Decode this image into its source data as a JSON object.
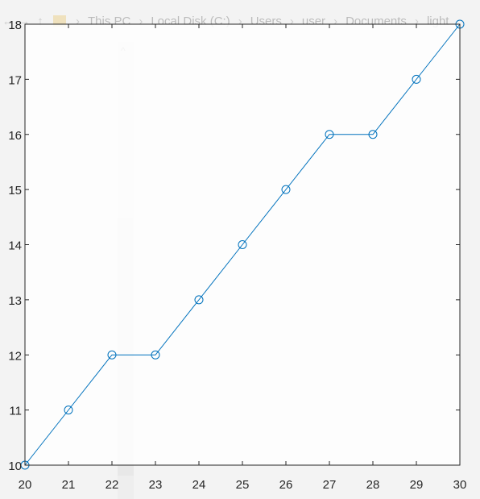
{
  "background": {
    "nav_back": "←",
    "nav_forward": "→",
    "nav_up": "↑",
    "breadcrumb": [
      "This PC",
      "Local Disk (C:)",
      "Users",
      "user",
      "Documents",
      "light"
    ],
    "scroll_up_arrow": "^"
  },
  "chart_data": {
    "type": "line",
    "title": "",
    "xlabel": "",
    "ylabel": "",
    "x": [
      20,
      21,
      22,
      23,
      24,
      25,
      26,
      27,
      28,
      29,
      30
    ],
    "series": [
      {
        "values": [
          10,
          11,
          12,
          12,
          13,
          14,
          15,
          16,
          16,
          17,
          18
        ],
        "color": "#0072bd",
        "marker": "circle"
      }
    ],
    "xlim": [
      20,
      30
    ],
    "ylim": [
      10,
      18
    ],
    "xticks": [
      "20",
      "21",
      "22",
      "23",
      "24",
      "25",
      "26",
      "27",
      "28",
      "29",
      "30"
    ],
    "yticks": [
      "10",
      "11",
      "12",
      "13",
      "14",
      "15",
      "16",
      "17",
      "18"
    ],
    "grid": false,
    "legend": "none"
  }
}
